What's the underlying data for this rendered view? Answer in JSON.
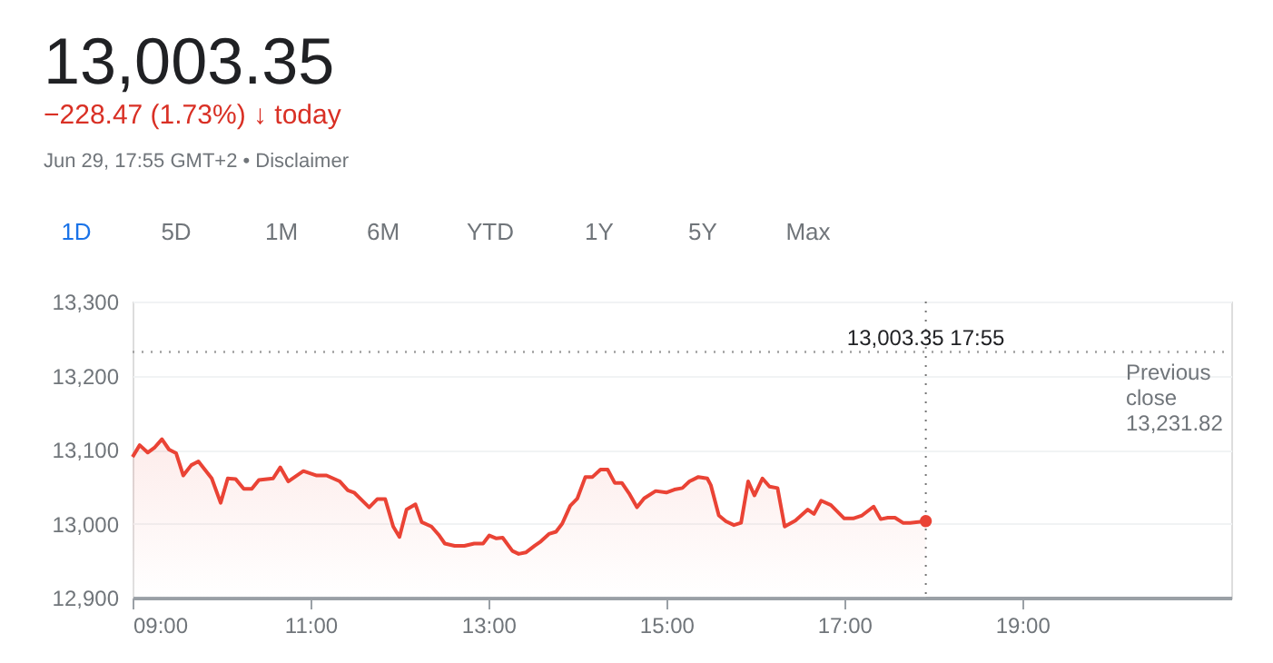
{
  "chart_data": {
    "type": "area",
    "title": "13,003.35",
    "subtitle": "−228.47 (1.73%) ↓ today",
    "annotations": [
      "Jun 29, 17:55 GMT+2 • Disclaimer",
      "1D",
      "5D",
      "1M",
      "6M",
      "YTD",
      "1Y",
      "5Y",
      "Max",
      "13,003.35  17:55"
    ],
    "x": [
      9.0,
      9.08,
      9.17,
      9.25,
      9.33,
      9.41,
      9.49,
      9.57,
      9.66,
      9.74,
      9.89,
      9.99,
      10.07,
      10.16,
      10.25,
      10.34,
      10.42,
      10.58,
      10.66,
      10.75,
      10.92,
      11.07,
      11.18,
      11.33,
      11.42,
      11.49,
      11.6,
      11.66,
      11.75,
      11.84,
      11.93,
      12.0,
      12.08,
      12.18,
      12.25,
      12.36,
      12.44,
      12.51,
      12.62,
      12.73,
      12.84,
      12.94,
      13.01,
      13.09,
      13.16,
      13.27,
      13.34,
      13.42,
      13.52,
      13.59,
      13.68,
      13.76,
      13.83,
      13.92,
      14.0,
      14.09,
      14.17,
      14.26,
      14.34,
      14.42,
      14.5,
      14.58,
      14.67,
      14.75,
      14.88,
      15.0,
      15.09,
      15.18,
      15.26,
      15.36,
      15.46,
      15.5,
      15.59,
      15.67,
      15.76,
      15.84,
      15.92,
      15.99,
      16.08,
      16.16,
      16.25,
      16.33,
      16.45,
      16.59,
      16.66,
      16.74,
      16.85,
      17.0,
      17.1,
      17.2,
      17.33,
      17.41,
      17.49,
      17.57,
      17.66,
      17.74,
      17.9167
    ],
    "series": [
      {
        "color": "#ea4335",
        "values": [
          13090,
          13106,
          13096,
          13103,
          13114,
          13100,
          13095,
          13065,
          13079,
          13084,
          13061,
          13028,
          13061,
          13060,
          13047,
          13047,
          13059,
          13061,
          13076,
          13057,
          13071,
          13065,
          13065,
          13057,
          13045,
          13042,
          13029,
          13022,
          13033,
          13033,
          12996,
          12982,
          13019,
          13026,
          13002,
          12996,
          12985,
          12973,
          12970,
          12970,
          12973,
          12973,
          12984,
          12980,
          12981,
          12963,
          12959,
          12961,
          12970,
          12976,
          12986,
          12989,
          13000,
          13024,
          13034,
          13063,
          13063,
          13073,
          13073,
          13055,
          13055,
          13041,
          13022,
          13034,
          13044,
          13042,
          13046,
          13048,
          13057,
          13063,
          13061,
          13052,
          13011,
          13003,
          12998,
          13001,
          13057,
          13038,
          13061,
          13050,
          13048,
          12996,
          13004,
          13019,
          13013,
          13031,
          13025,
          13007,
          13007,
          13011,
          13023,
          13006,
          13008,
          13008,
          13001,
          13001,
          13003.35
        ]
      }
    ],
    "xlim": [
      9,
      21.35
    ],
    "xticks": [
      {
        "value": 9,
        "label": "09:00"
      },
      {
        "value": 11,
        "label": "11:00"
      },
      {
        "value": 13,
        "label": "13:00"
      },
      {
        "value": 15,
        "label": "15:00"
      },
      {
        "value": 17,
        "label": "17:00"
      },
      {
        "value": 19,
        "label": "19:00"
      }
    ],
    "ylim": [
      12900,
      13300
    ],
    "yticks": [
      {
        "value": 12900,
        "label": "12,900"
      },
      {
        "value": 13000,
        "label": "13,000"
      },
      {
        "value": 13100,
        "label": "13,100"
      },
      {
        "value": 13200,
        "label": "13,200"
      },
      {
        "value": 13300,
        "label": "13,300"
      }
    ],
    "grid": "y",
    "ref_lines": [
      {
        "axis": "y",
        "value": 13231.82,
        "label": "Previous close 13,231.82",
        "line_style": "dotted",
        "color": "#9e9e9e"
      },
      {
        "axis": "x",
        "value": 17.9167,
        "line_style": "dotted",
        "color": "#757575"
      }
    ]
  }
}
